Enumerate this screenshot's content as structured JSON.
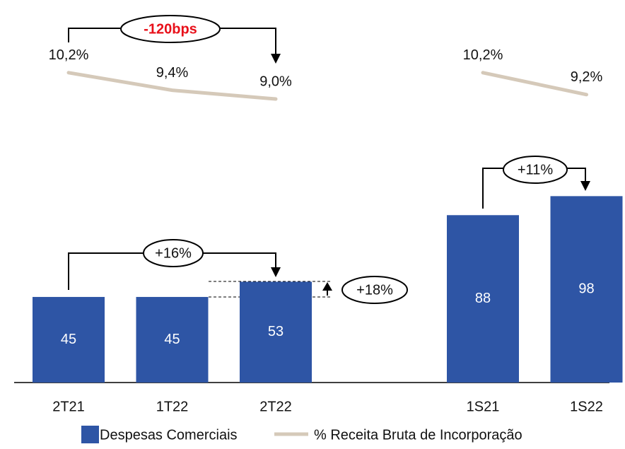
{
  "chart_data": {
    "type": "bar",
    "categories": [
      "2T21",
      "1T22",
      "2T22",
      null,
      "1S21",
      "1S22"
    ],
    "series": [
      {
        "name": "Despesas Comerciais",
        "type": "bar",
        "color": "#2e55a5",
        "values": [
          45,
          45,
          53,
          null,
          88,
          98
        ]
      },
      {
        "name": "% Receita Bruta de Incorporação",
        "type": "line",
        "axis": "y2",
        "color": "#d5c9b9",
        "values": [
          10.2,
          9.4,
          9.0,
          null,
          10.2,
          9.2
        ],
        "value_labels": [
          "10,2%",
          "9,4%",
          "9,0%",
          null,
          "10,2%",
          "9,2%"
        ]
      }
    ],
    "annotations": [
      "-120bps",
      "+16%",
      "+18%",
      "+11%"
    ]
  }
}
